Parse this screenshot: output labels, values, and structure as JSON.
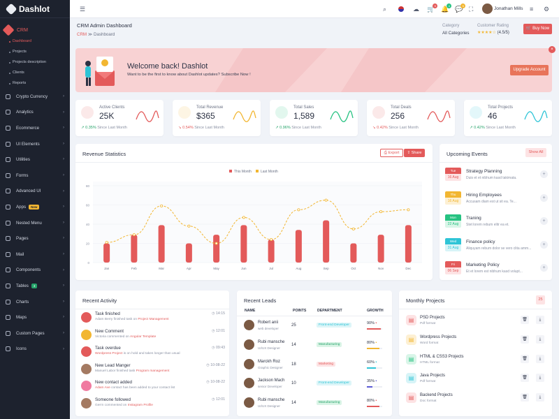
{
  "app": {
    "name": "Dashlot"
  },
  "sidebar": {
    "crm_label": "CRM",
    "sub_items": [
      "Dashboard",
      "Projects",
      "Projects description",
      "Clients",
      "Reports"
    ],
    "items": [
      {
        "label": "Crypto Currency",
        "icon": "coin-icon"
      },
      {
        "label": "Analytics",
        "icon": "analytics-icon"
      },
      {
        "label": "Ecommerce",
        "icon": "cart-icon"
      },
      {
        "label": "UI Elements",
        "icon": "layers-icon"
      },
      {
        "label": "Utilities",
        "icon": "tool-icon"
      },
      {
        "label": "Forms",
        "icon": "form-icon"
      },
      {
        "label": "Advanced UI",
        "icon": "advanced-icon"
      },
      {
        "label": "Apps",
        "icon": "apps-icon",
        "badge": "New"
      },
      {
        "label": "Nested Menu",
        "icon": "nested-icon"
      },
      {
        "label": "Pages",
        "icon": "pages-icon"
      },
      {
        "label": "Mail",
        "icon": "mail-icon"
      },
      {
        "label": "Components",
        "icon": "components-icon"
      },
      {
        "label": "Tables",
        "icon": "table-icon",
        "badge": "3"
      },
      {
        "label": "Charts",
        "icon": "chart-icon"
      },
      {
        "label": "Maps",
        "icon": "map-icon"
      },
      {
        "label": "Custom Pages",
        "icon": "custom-pages-icon"
      },
      {
        "label": "Icons",
        "icon": "icons-icon"
      }
    ]
  },
  "topbar": {
    "user_name": "Jonathan Mills",
    "cart_count": "5",
    "notif_count": "4",
    "msg_count": "5"
  },
  "header": {
    "title": "CRM Admin Dashboard",
    "breadcrumb_root": "CRM",
    "breadcrumb_current": "Dashboard",
    "category_label": "Category",
    "category_value": "All Categories",
    "rating_label": "Customer Rating",
    "rating_stars": "★★★★☆",
    "rating_value": "(4.5/5)",
    "buy_label": "Buy Now"
  },
  "welcome": {
    "title": "Welcome back! Dashlot",
    "subtitle": "Want to be the first to know about Dashlot updates? Subscribe Now !",
    "button": "Upgrade Account"
  },
  "stats": [
    {
      "label": "Active Clients",
      "value": "25K",
      "change": "0.35%",
      "since": "Since Last Month",
      "color": "#e35a5a",
      "trend": "up"
    },
    {
      "label": "Total Revenue",
      "value": "$365",
      "change": "0.54%",
      "since": "Since Last Month",
      "color": "#f2b631",
      "trend": "down"
    },
    {
      "label": "Total Sales",
      "value": "1,589",
      "change": "0.96%",
      "since": "Since Last Month",
      "color": "#26c281",
      "trend": "up"
    },
    {
      "label": "Total Deals",
      "value": "256",
      "change": "0.42%",
      "since": "Since Last Month",
      "color": "#e35a5a",
      "trend": "down"
    },
    {
      "label": "Total Projects",
      "value": "46",
      "change": "0.42%",
      "since": "Since Last Month",
      "color": "#2ec4d6",
      "trend": "up"
    }
  ],
  "revenue": {
    "title": "Revenue Statistics",
    "export_label": "Export",
    "share_label": "Share"
  },
  "chart_data": {
    "type": "bar",
    "categories": [
      "Jan",
      "Feb",
      "Mar",
      "Apr",
      "May",
      "Jun",
      "Jul",
      "Aug",
      "Sep",
      "Oct",
      "Nov",
      "Dec"
    ],
    "series": [
      {
        "name": "This Month",
        "type": "bar",
        "color": "#e35a5a",
        "values": [
          20,
          29,
          39,
          20,
          29,
          39,
          24,
          34,
          44,
          20,
          29,
          39
        ]
      },
      {
        "name": "Last Month",
        "type": "line",
        "color": "#f2b631",
        "values": [
          21,
          29,
          59,
          38,
          20,
          47,
          24,
          55,
          65,
          35,
          53,
          55
        ]
      }
    ],
    "ylim": [
      0,
      80
    ],
    "yticks": [
      0,
      20,
      40,
      60,
      80
    ],
    "legend": "top-center",
    "grid": true
  },
  "events": {
    "title": "Upcoming Events",
    "show_all": "Show All",
    "items": [
      {
        "day": "Tue",
        "date": "16 Aug",
        "title": "Strategy Planning",
        "desc": "Duis et et nibhum kasd takimata.",
        "color": "#e35a5a",
        "bg": "#fde3e4"
      },
      {
        "day": "Thu",
        "date": "16 Aug",
        "title": "Hiring Employees",
        "desc": "Accusam diam est ut sit ea. Te...",
        "color": "#f2b631",
        "bg": "#fdf0d3"
      },
      {
        "day": "Mon",
        "date": "22 Aug",
        "title": "Traning",
        "desc": "Stet lorem rebum elitr ea et.",
        "color": "#26c281",
        "bg": "#d9f5e8"
      },
      {
        "day": "Wed",
        "date": "31 Aug",
        "title": "Finance policy",
        "desc": "Aliquyam rebum dolor se vero clita amm...",
        "color": "#2ec4d6",
        "bg": "#d7f4f7"
      },
      {
        "day": "Fri",
        "date": "06 Sep",
        "title": "Marketing Policy",
        "desc": "Et et lorem est nibhum kasd volupt...",
        "color": "#e35a5a",
        "bg": "#fde3e4"
      }
    ]
  },
  "activity": {
    "title": "Recent Activity",
    "items": [
      {
        "title": "Task finished",
        "pre": "Adam Berry finished task on ",
        "link": "Project Management",
        "time": "14:15",
        "color": "#e35a5a"
      },
      {
        "title": "New Comment",
        "pre": "Victoria commented on ",
        "link": "Angular Template",
        "time": "12:01",
        "color": "#f2b631"
      },
      {
        "title": "Task overdue",
        "pre": "",
        "link": "Wordpress Project",
        "post": " is on hold and takes longer than usual",
        "time": "09:43",
        "color": "#e35a5a"
      },
      {
        "title": "New Lead Manger",
        "pre": "Manuel Labor finished task ",
        "link": "Program management",
        "time": "10-08-22",
        "color": "#a47a62"
      },
      {
        "title": "New contact added",
        "pre": "",
        "link": "Adam Ave",
        "post": " contact has been added to your contact list",
        "time": "10-08-22",
        "color": "#f07aa0"
      },
      {
        "title": "Someone followed",
        "pre": "Gerrn commented on ",
        "link": "Instagram Profile",
        "time": "12:01",
        "color": "#a47a62"
      }
    ]
  },
  "leads": {
    "title": "Recent Leads",
    "headers": [
      "NAME",
      "POINTS",
      "DEPARTMENT",
      "GROWTH"
    ],
    "rows": [
      {
        "name": "Robert anii",
        "role": "web developer",
        "points": "25",
        "dept": "Front-end Developer",
        "dept_color": "#2ec4d6",
        "dept_bg": "#dcf5f8",
        "growth": "90%",
        "growth_frac": 0.9,
        "bar_color": "#e35a5a"
      },
      {
        "name": "Rubi mansche",
        "role": "UI/UX Designer",
        "points": "14",
        "dept": "Manufacturing",
        "dept_color": "#26a36a",
        "dept_bg": "#daf4e6",
        "growth": "80%",
        "growth_frac": 0.8,
        "bar_color": "#f2b631"
      },
      {
        "name": "Marckh Roz",
        "role": "Graphic Designer",
        "points": "18",
        "dept": "Marketing",
        "dept_color": "#e35a5a",
        "dept_bg": "#fde3e4",
        "growth": "60%",
        "growth_frac": 0.6,
        "bar_color": "#2ec4d6"
      },
      {
        "name": "Jackson Mach",
        "role": "senior Developer",
        "points": "10",
        "dept": "Front-end Developer",
        "dept_color": "#2ec4d6",
        "dept_bg": "#dcf5f8",
        "growth": "35%",
        "growth_frac": 0.35,
        "bar_color": "#5a5ad6"
      },
      {
        "name": "Rubi mansche",
        "role": "UI/UX Designer",
        "points": "14",
        "dept": "Manufacturing",
        "dept_color": "#26a36a",
        "dept_bg": "#daf4e6",
        "growth": "80%",
        "growth_frac": 0.8,
        "bar_color": "#e35a5a"
      }
    ]
  },
  "projects": {
    "title": "Monthly Projects",
    "badge": "25",
    "items": [
      {
        "name": "PSD Projects",
        "format": "Pdf format",
        "color": "#e35a5a",
        "bg": "#fde3e4"
      },
      {
        "name": "Wordpress Projects",
        "format": "Word format",
        "color": "#f2b631",
        "bg": "#fdf0d3"
      },
      {
        "name": "HTML & CSS3 Projects",
        "format": "HTML format",
        "color": "#26c281",
        "bg": "#d9f5e8"
      },
      {
        "name": "Java Projects",
        "format": "Pdf format",
        "color": "#2ec4d6",
        "bg": "#d7f4f7"
      },
      {
        "name": "Backend Projects",
        "format": "Doc format",
        "color": "#e35a5a",
        "bg": "#fde3e4"
      }
    ]
  }
}
